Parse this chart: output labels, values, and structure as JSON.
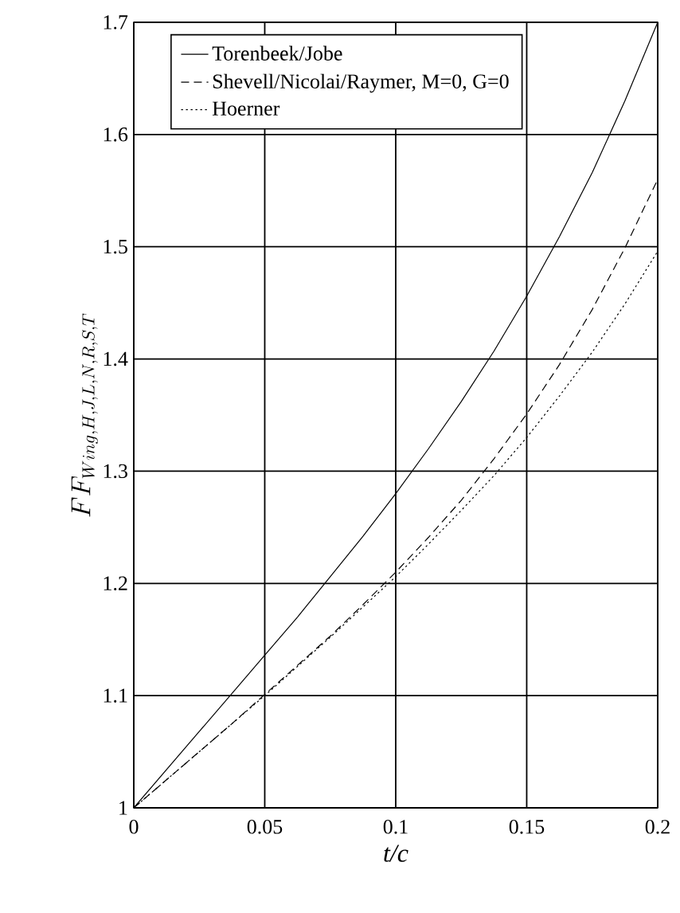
{
  "chart_data": {
    "type": "line",
    "xlabel": "t/c",
    "ylabel": "FF_{Wing,H,J,L,N,R,S,T}",
    "x": [
      0,
      0.0125,
      0.025,
      0.0375,
      0.05,
      0.0625,
      0.075,
      0.0875,
      0.1,
      0.1125,
      0.125,
      0.1375,
      0.15,
      0.1625,
      0.175,
      0.1875,
      0.2
    ],
    "series": [
      {
        "name": "Torenbeek/Jobe",
        "color": "#000000",
        "line_style": "solid",
        "values": [
          1,
          1.034,
          1.068,
          1.102,
          1.136,
          1.17,
          1.206,
          1.242,
          1.28,
          1.32,
          1.362,
          1.407,
          1.456,
          1.509,
          1.566,
          1.63,
          1.7
        ]
      },
      {
        "name": "Shevell/Nicolai/Raymer, M=0, G=0",
        "color": "#000000",
        "line_style": "dashed",
        "values": [
          1,
          1.025,
          1.05,
          1.075,
          1.101,
          1.127,
          1.153,
          1.181,
          1.21,
          1.241,
          1.274,
          1.311,
          1.351,
          1.395,
          1.444,
          1.499,
          1.56
        ]
      },
      {
        "name": "Hoerner",
        "color": "#000000",
        "line_style": "dotted",
        "values": [
          1,
          1.025,
          1.05,
          1.075,
          1.1,
          1.126,
          1.152,
          1.179,
          1.206,
          1.235,
          1.265,
          1.296,
          1.33,
          1.367,
          1.406,
          1.449,
          1.496
        ]
      }
    ],
    "xlim": [
      0,
      0.2
    ],
    "ylim": [
      1,
      1.7
    ],
    "xticks": [
      0,
      0.05,
      0.1,
      0.15,
      0.2
    ],
    "yticks": [
      1,
      1.1,
      1.2,
      1.3,
      1.4,
      1.5,
      1.6,
      1.7
    ],
    "grid": true,
    "legend": "top left",
    "marker": "none"
  }
}
